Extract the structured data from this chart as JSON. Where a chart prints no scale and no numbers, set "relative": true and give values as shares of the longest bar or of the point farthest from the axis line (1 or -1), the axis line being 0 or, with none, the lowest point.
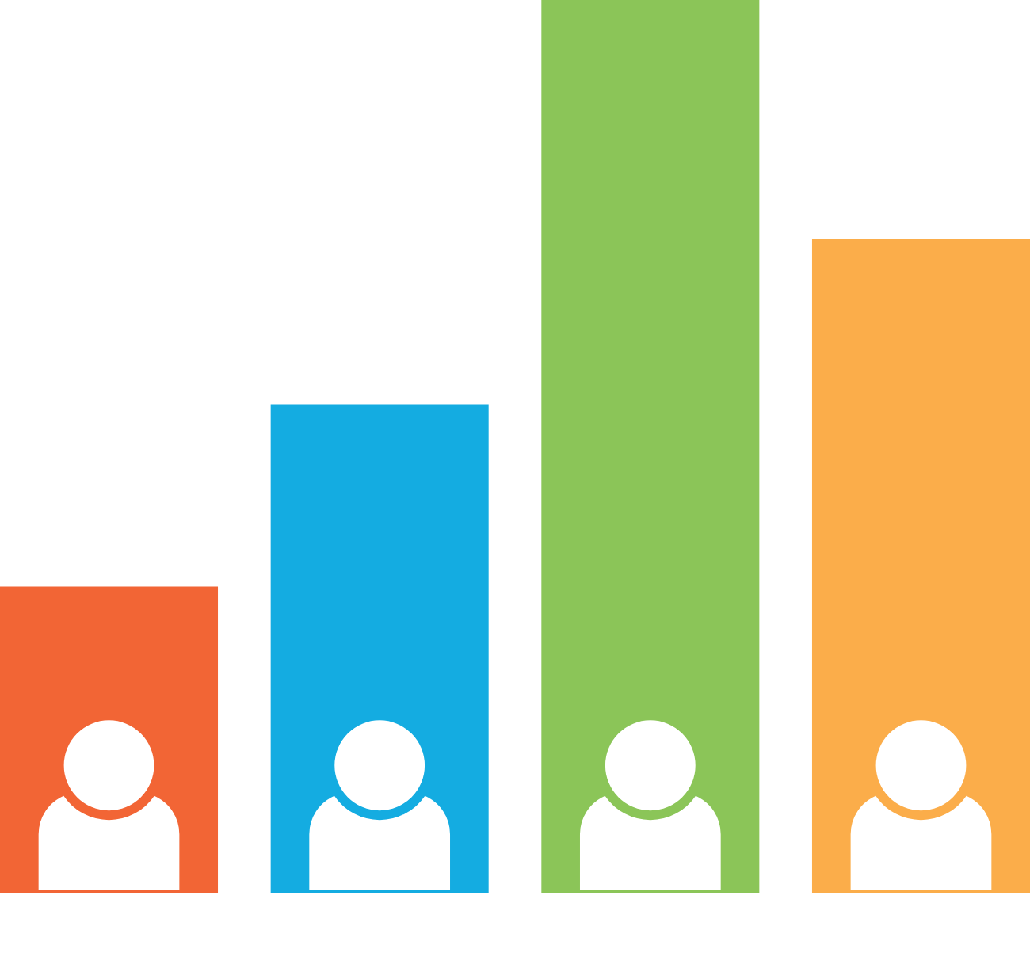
{
  "chart_data": {
    "type": "bar",
    "relative": true,
    "categories": [
      null,
      null,
      null,
      null
    ],
    "values": [
      0.343,
      0.547,
      1,
      0.732
    ],
    "colors": [
      "#f26535",
      "#14ace1",
      "#8bc558",
      "#fbad4a"
    ]
  }
}
